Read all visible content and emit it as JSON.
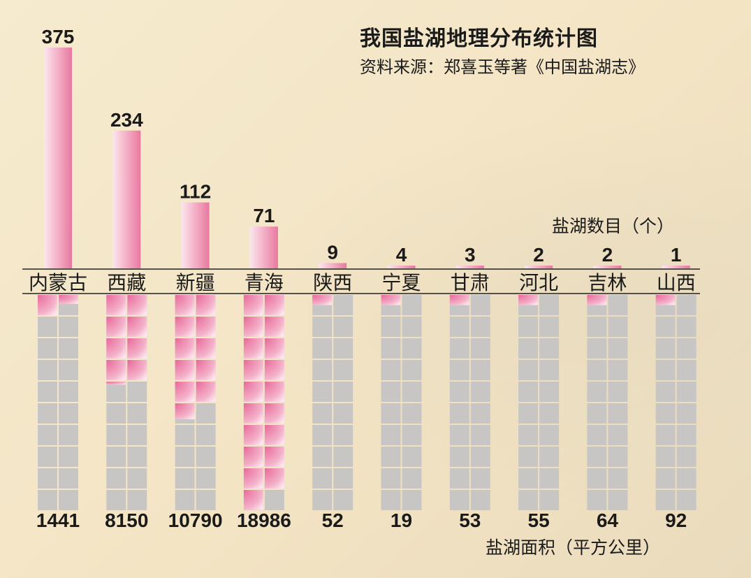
{
  "header": {
    "title": "我国盐湖地理分布统计图",
    "source": "资料来源：郑喜玉等著《中国盐湖志》"
  },
  "labels": {
    "count_unit": "盐湖数目（个）",
    "area_unit": "盐湖面积（平方公里）"
  },
  "colors": {
    "bar_pink": "#e8789f",
    "bar_light": "#fbe6ee",
    "cell_gray": "#c8c6c4",
    "text": "#1a1a1a"
  },
  "chart_data": {
    "type": "bar",
    "title": "我国盐湖地理分布统计图",
    "categories": [
      "内蒙古",
      "西藏",
      "新疆",
      "青海",
      "陕西",
      "宁夏",
      "甘肃",
      "河北",
      "吉林",
      "山西"
    ],
    "series": [
      {
        "name": "盐湖数目（个）",
        "values": [
          375,
          234,
          112,
          71,
          9,
          4,
          3,
          2,
          2,
          1
        ]
      },
      {
        "name": "盐湖面积（平方公里）",
        "values": [
          1441,
          8150,
          10790,
          18986,
          52,
          19,
          53,
          55,
          64,
          92
        ]
      }
    ],
    "area_grid": {
      "rows": 10,
      "cols": 2,
      "area_per_cell": 1000
    },
    "ylim_count": [
      0,
      375
    ],
    "ylim_area": [
      0,
      20000
    ],
    "grid": false,
    "legend": "none"
  }
}
